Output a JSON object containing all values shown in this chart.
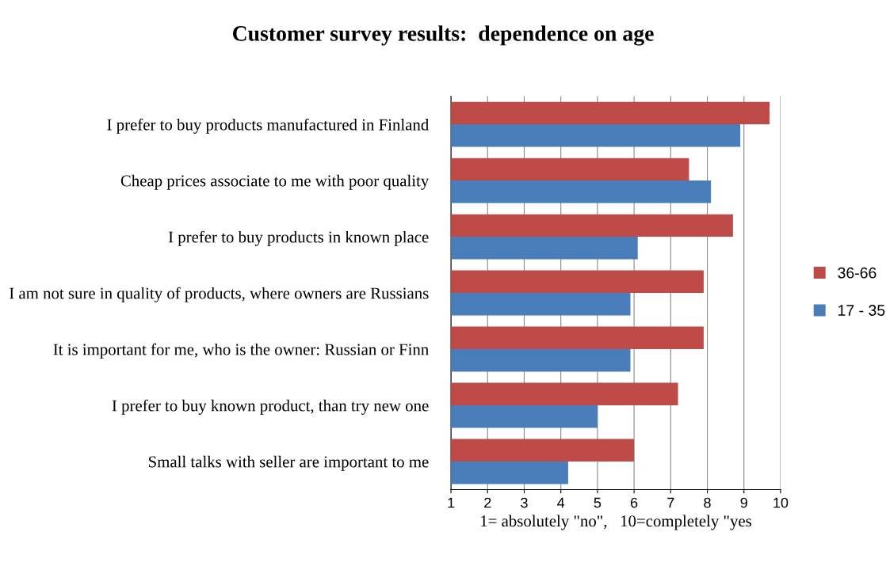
{
  "chart_data": {
    "type": "bar",
    "orientation": "horizontal",
    "title": "Customer survey results:  dependence on age",
    "xlabel": "1= absolutely \"no\",   10=completely \"yes",
    "categories": [
      "I prefer to buy products manufactured in Finland",
      "Cheap prices associate to me with poor quality",
      "I prefer to buy products in known place",
      "I am not sure in quality of products, where owners are Russians",
      "It is important for me, who is the owner: Russian or Finn",
      "I prefer to buy known product, than try new one",
      "Small talks with seller are important to me"
    ],
    "series": [
      {
        "name": "17 - 35",
        "color": "#4a7ebb",
        "values": [
          8.9,
          8.1,
          6.1,
          5.9,
          5.9,
          5.0,
          4.2
        ]
      },
      {
        "name": "36-66",
        "color": "#be4b48",
        "values": [
          9.7,
          7.5,
          8.7,
          7.9,
          7.9,
          7.2,
          6.0
        ]
      }
    ],
    "xlim": [
      1,
      10
    ],
    "xticks": [
      1,
      2,
      3,
      4,
      5,
      6,
      7,
      8,
      9,
      10
    ],
    "grid": "x",
    "legend": "right"
  }
}
